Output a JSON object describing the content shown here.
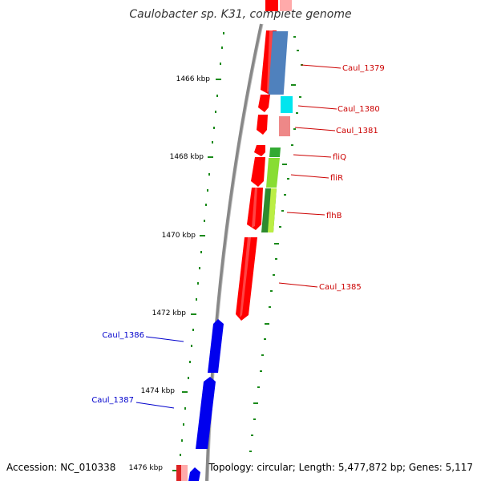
{
  "title": "Caulobacter sp. K31, complete genome",
  "footer": {
    "accession": "Accession: NC_010338",
    "summary": "Topology: circular; Length: 5,477,872 bp; Genes: 5,117"
  },
  "colors": {
    "backbone": "#888888",
    "tick": "#1a8a1a",
    "forward_gene": "#ff0000",
    "reverse_gene": "#0000ee",
    "label_forward": "#cc0000",
    "label_reverse": "#0000cc"
  },
  "ticks": [
    {
      "label": "1466 kbp"
    },
    {
      "label": "1468 kbp"
    },
    {
      "label": "1470 kbp"
    },
    {
      "label": "1472 kbp"
    },
    {
      "label": "1474 kbp"
    },
    {
      "label": "1476 kbp"
    }
  ],
  "gene_labels": [
    {
      "text": "Caul_1379",
      "strand": "forward"
    },
    {
      "text": "Caul_1380",
      "strand": "forward"
    },
    {
      "text": "Caul_1381",
      "strand": "forward"
    },
    {
      "text": "fliQ",
      "strand": "forward"
    },
    {
      "text": "fliR",
      "strand": "forward"
    },
    {
      "text": "flhB",
      "strand": "forward"
    },
    {
      "text": "Caul_1385",
      "strand": "forward"
    },
    {
      "text": "Caul_1386",
      "strand": "reverse"
    },
    {
      "text": "Caul_1387",
      "strand": "reverse"
    }
  ]
}
